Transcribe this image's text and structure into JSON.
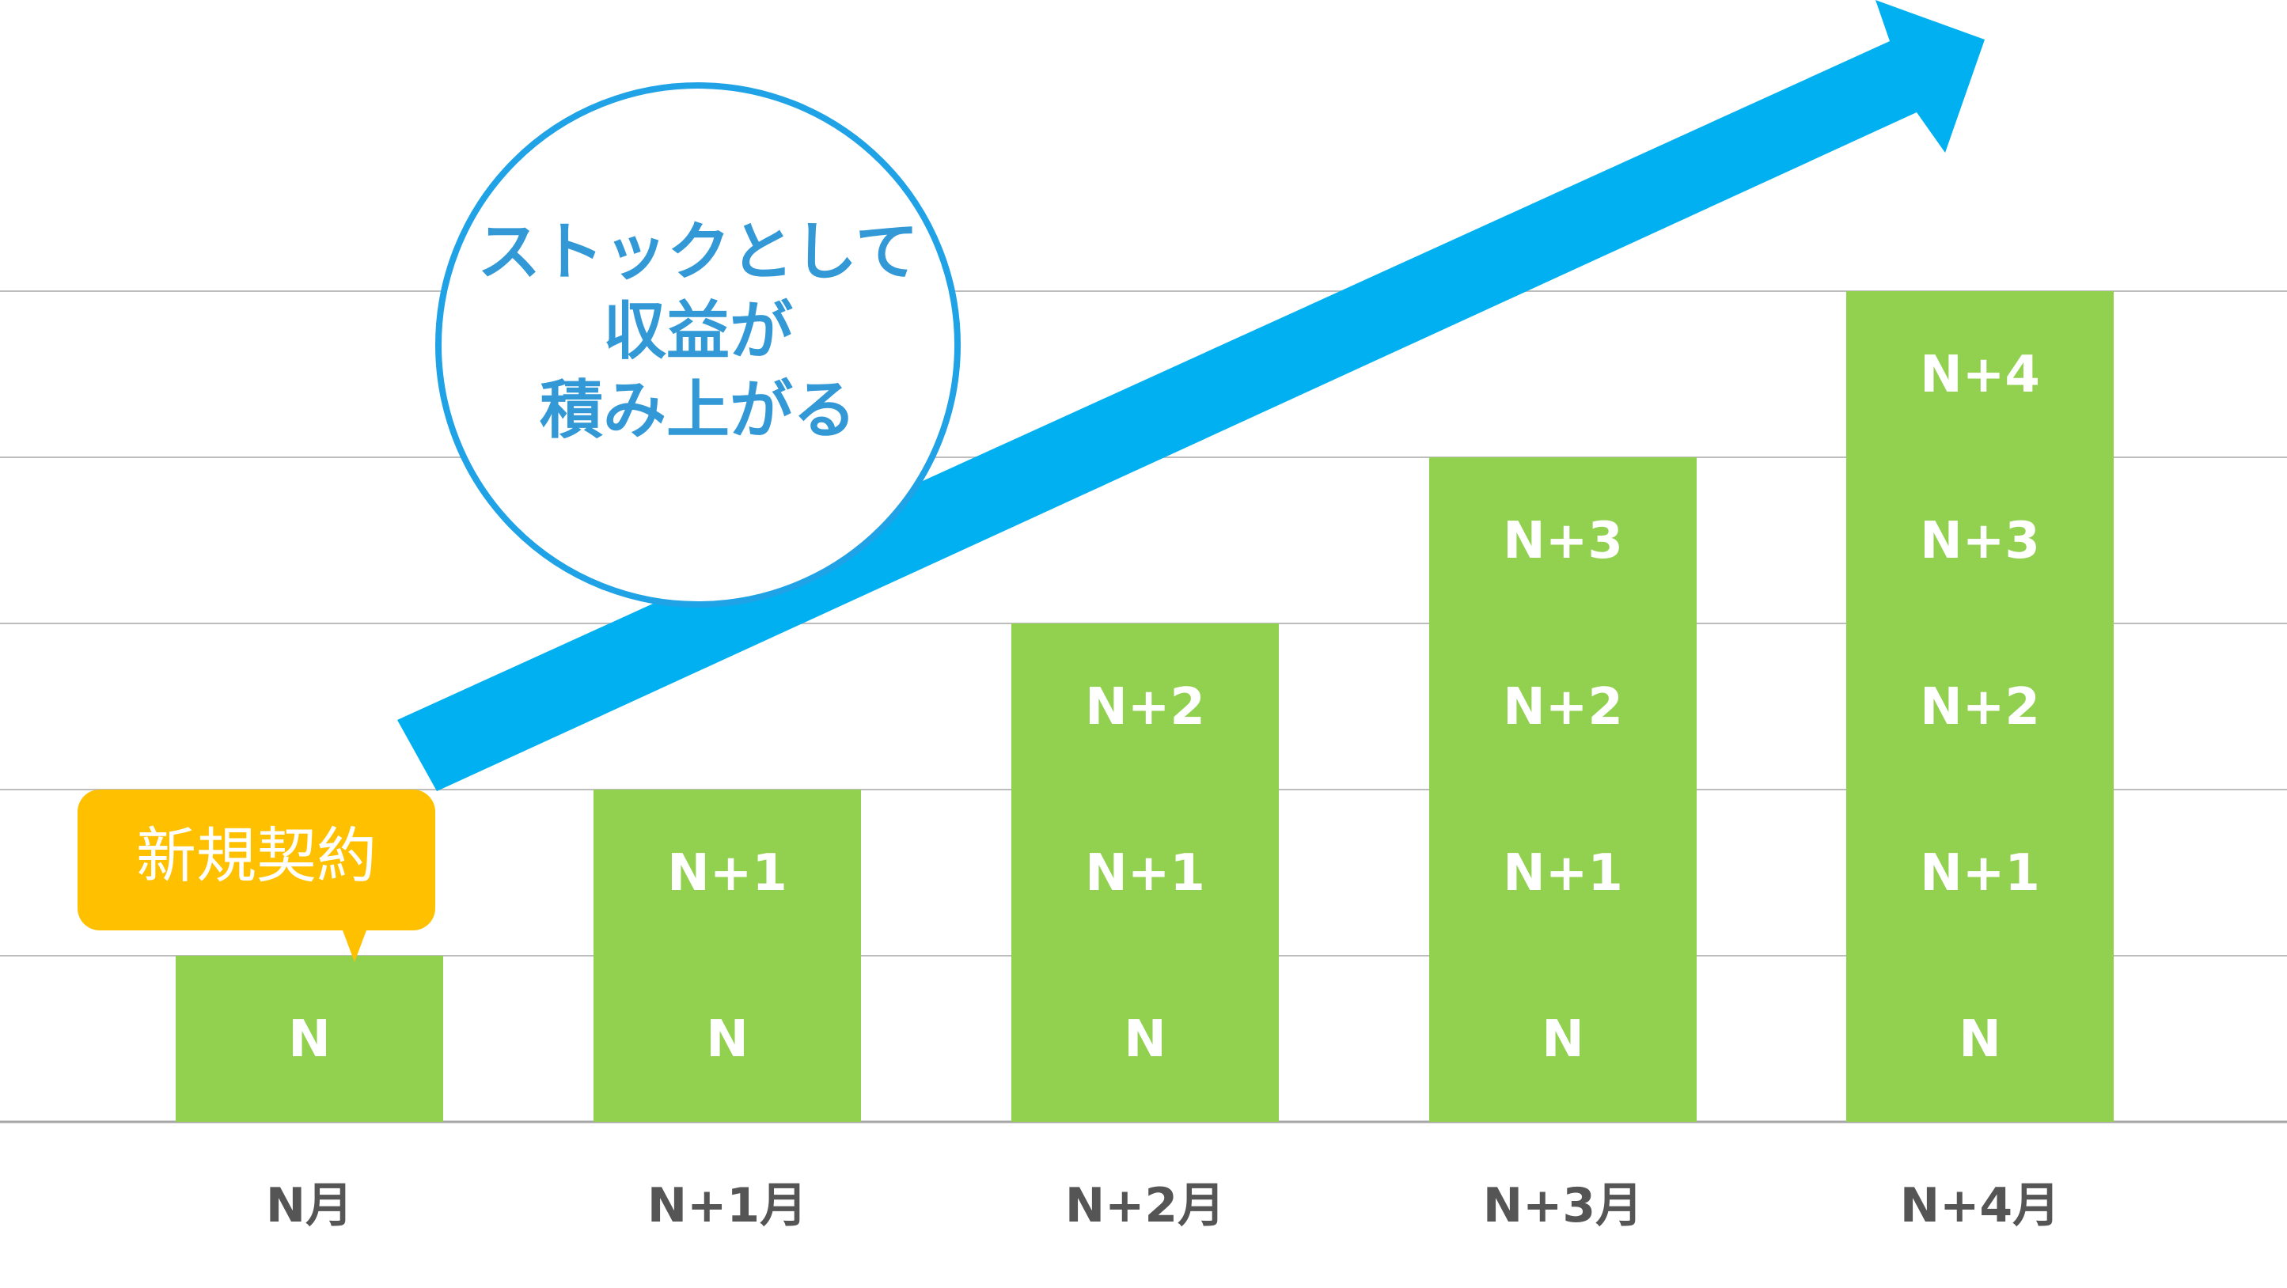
{
  "chart_data": {
    "type": "bar",
    "stacked": true,
    "categories": [
      "N月",
      "N+1月",
      "N+2月",
      "N+3月",
      "N+4月"
    ],
    "segments": [
      [
        "N"
      ],
      [
        "N",
        "N+1"
      ],
      [
        "N",
        "N+1",
        "N+2"
      ],
      [
        "N",
        "N+1",
        "N+2",
        "N+3"
      ],
      [
        "N",
        "N+1",
        "N+2",
        "N+3",
        "N+4"
      ]
    ],
    "values": [
      1,
      2,
      3,
      4,
      5
    ],
    "ylim": [
      0,
      5
    ],
    "grid": true,
    "colors": {
      "bar": "#92d050",
      "arrow": "#00b0f0",
      "circle_stroke": "#1fa2e6",
      "circle_text": "#3399d6",
      "callout": "#ffc000",
      "grid": "#bdbdbd"
    },
    "annotations": {
      "circle_lines": [
        "ストックとして",
        "収益が",
        "積み上がる"
      ],
      "callout": "新規契約"
    }
  }
}
